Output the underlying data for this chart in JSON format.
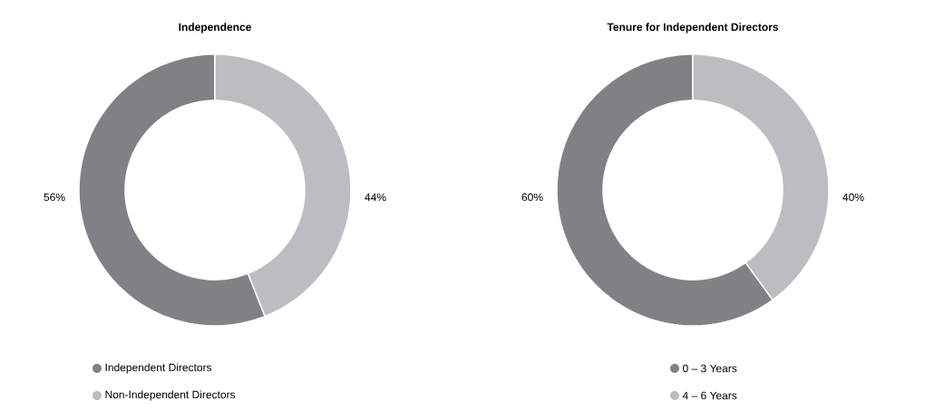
{
  "chart_data": [
    {
      "type": "donut",
      "title": "Independence",
      "categories": [
        "Independent Directors",
        "Non-Independent Directors"
      ],
      "values": [
        56,
        44
      ],
      "colors": [
        "#808184",
        "#bcbdc0"
      ],
      "value_labels": [
        "56%",
        "44%"
      ],
      "legend": "bottom"
    },
    {
      "type": "donut",
      "title": "Tenure for Independent Directors",
      "categories": [
        "0 – 3 Years",
        "4 – 6 Years"
      ],
      "values": [
        60,
        40
      ],
      "colors": [
        "#808184",
        "#bcbdc0"
      ],
      "value_labels": [
        "60%",
        "40%"
      ],
      "legend": "bottom"
    }
  ]
}
